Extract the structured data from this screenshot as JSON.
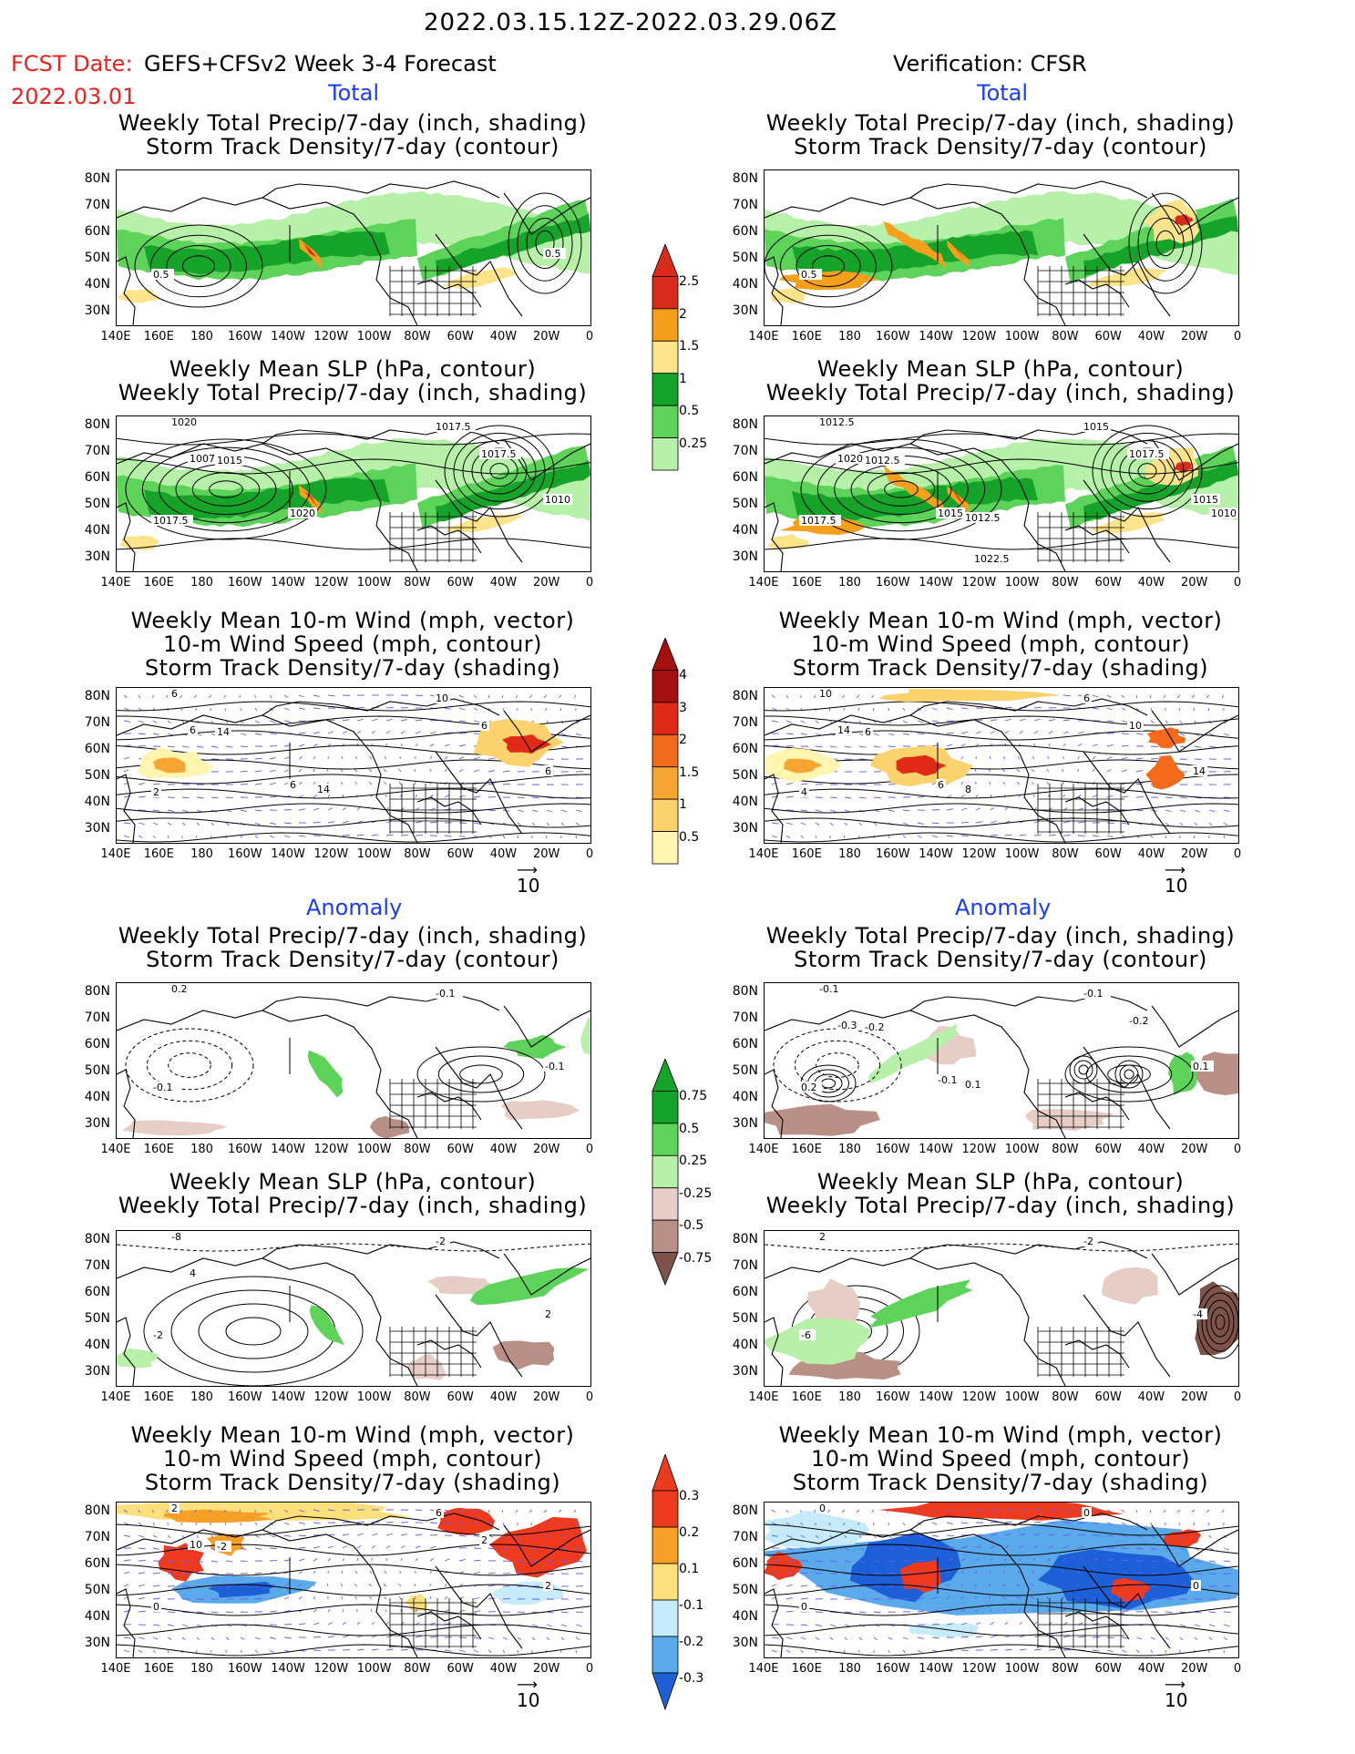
{
  "header": {
    "title": "2022.03.15.12Z-2022.03.29.06Z",
    "fcst_date_label": "FCST Date:",
    "fcst_date": "2022.03.01",
    "left_model": "GEFS+CFSv2 Week 3-4 Forecast",
    "right_model": "Verification: CFSR"
  },
  "sections": {
    "total": "Total",
    "anomaly": "Anomaly"
  },
  "panel_titles": {
    "precip_storm": [
      "Weekly Total Precip/7-day (inch, shading)",
      "Storm Track Density/7-day (contour)"
    ],
    "slp_precip": [
      "Weekly Mean SLP (hPa, contour)",
      "Weekly Total Precip/7-day (inch, shading)"
    ],
    "wind": [
      "Weekly Mean 10-m Wind (mph, vector)",
      "10-m Wind Speed (mph, contour)",
      "Storm Track Density/7-day (shading)"
    ]
  },
  "axes": {
    "lat_labels": [
      "80N",
      "70N",
      "60N",
      "50N",
      "40N",
      "30N"
    ],
    "lon_labels": [
      "140E",
      "160E",
      "180",
      "160W",
      "140W",
      "120W",
      "100W",
      "80W",
      "60W",
      "40W",
      "20W",
      "0"
    ]
  },
  "vector_ref": "10",
  "colorbars": {
    "precip_total": {
      "labels": [
        "2.5",
        "2",
        "1.5",
        "1",
        "0.5",
        "0.25"
      ],
      "colors": [
        "#d92b1c",
        "#f5a01a",
        "#fde48a",
        "#16a32a",
        "#5dd35a",
        "#b7f0a8"
      ]
    },
    "storm_total": {
      "labels": [
        "4",
        "3",
        "2",
        "1.5",
        "1",
        "0.5"
      ],
      "colors": [
        "#a50f0f",
        "#e02a17",
        "#f26a1a",
        "#f7a531",
        "#fbd26b",
        "#fff4b0"
      ]
    },
    "precip_anom": {
      "labels": [
        "0.75",
        "0.5",
        "0.25",
        "-0.25",
        "-0.5",
        "-0.75"
      ],
      "colors": [
        "#16a32a",
        "#5dd35a",
        "#b7f0a8",
        "#e6cdc6",
        "#b99086",
        "#7d5248"
      ]
    },
    "storm_anom": {
      "labels": [
        "0.3",
        "0.2",
        "0.1",
        "-0.1",
        "-0.2",
        "-0.3"
      ],
      "colors": [
        "#ee3a1e",
        "#f7a028",
        "#fde07a",
        "#c6ecfb",
        "#5aa9ea",
        "#1c5fd6"
      ]
    }
  },
  "contour_labels": {
    "l1": [
      "0.5",
      "0.5"
    ],
    "r1": [
      "0.5"
    ],
    "l2": [
      "1017.5",
      "1010",
      "1020",
      "1017.5",
      "1007.5",
      "1015",
      "1017.5",
      "1020"
    ],
    "r2": [
      "1017.5",
      "1015",
      "1012.5",
      "1015",
      "1020",
      "1012.5",
      "1017.5",
      "1015",
      "1012.5",
      "1010",
      "1022.5"
    ],
    "l3": [
      "2",
      "6",
      "6",
      "10",
      "6",
      "14",
      "6",
      "6",
      "14"
    ],
    "r3": [
      "4",
      "14",
      "10",
      "6",
      "14",
      "6",
      "10",
      "6",
      "8"
    ],
    "l4": [
      "-0.1",
      "-0.1",
      "0.2",
      "-0.1"
    ],
    "r4": [
      "0.2",
      "0.1",
      "-0.1",
      "-0.1",
      "-0.3",
      "-0.2",
      "-0.2",
      "-0.1",
      "0.1"
    ],
    "l5": [
      "-2",
      "2",
      "-8",
      "-2",
      "4"
    ],
    "r5": [
      "-6",
      "-4",
      "2",
      "-2"
    ],
    "l6": [
      "0",
      "2",
      "2",
      "6",
      "10",
      "-2",
      "2"
    ],
    "r6": [
      "0",
      "0",
      "0",
      "0"
    ]
  }
}
